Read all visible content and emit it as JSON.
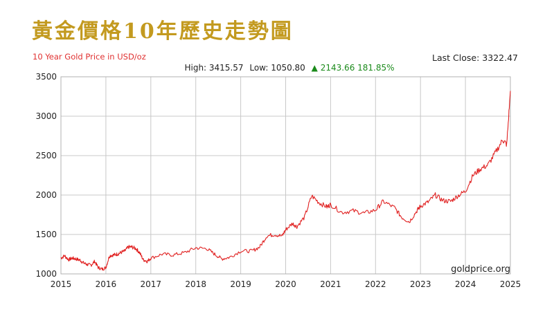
{
  "page_title": "黃金價格10年歷史走勢圖",
  "chart_data": {
    "type": "line",
    "title": "10 Year Gold Price in USD/oz",
    "last_close_label": "Last Close: 3322.47",
    "stats": {
      "high_label": "High: 3415.57",
      "low_label": "Low: 1050.80",
      "change_label": "▲ 2143.66 181.85%"
    },
    "watermark": "goldprice.org",
    "xlabel": "",
    "ylabel": "",
    "xlim": [
      2015,
      2025
    ],
    "ylim": [
      1000,
      3500
    ],
    "grid": true,
    "x_ticks": [
      "2015",
      "2016",
      "2017",
      "2018",
      "2019",
      "2020",
      "2021",
      "2022",
      "2023",
      "2024",
      "2025"
    ],
    "y_ticks": [
      "1000",
      "1500",
      "2000",
      "2500",
      "3000",
      "3500"
    ],
    "series": [
      {
        "color": "#e02020",
        "x": [
          2015.0,
          2015.08,
          2015.17,
          2015.25,
          2015.33,
          2015.42,
          2015.5,
          2015.58,
          2015.67,
          2015.75,
          2015.83,
          2015.92,
          2016.0,
          2016.08,
          2016.17,
          2016.25,
          2016.33,
          2016.42,
          2016.5,
          2016.58,
          2016.67,
          2016.75,
          2016.83,
          2016.92,
          2017.0,
          2017.25,
          2017.5,
          2017.75,
          2018.0,
          2018.25,
          2018.42,
          2018.58,
          2018.75,
          2019.0,
          2019.25,
          2019.42,
          2019.58,
          2019.75,
          2019.92,
          2020.0,
          2020.15,
          2020.25,
          2020.42,
          2020.58,
          2020.75,
          2020.92,
          2021.0,
          2021.25,
          2021.5,
          2021.75,
          2022.0,
          2022.17,
          2022.42,
          2022.58,
          2022.75,
          2022.92,
          2023.0,
          2023.17,
          2023.33,
          2023.5,
          2023.67,
          2023.83,
          2024.0,
          2024.17,
          2024.33,
          2024.5,
          2024.67,
          2024.83,
          2024.92,
          2025.0
        ],
        "y": [
          1200,
          1230,
          1180,
          1200,
          1190,
          1175,
          1140,
          1120,
          1110,
          1160,
          1080,
          1060,
          1080,
          1230,
          1240,
          1250,
          1270,
          1290,
          1340,
          1340,
          1320,
          1270,
          1180,
          1160,
          1200,
          1250,
          1240,
          1270,
          1330,
          1320,
          1250,
          1190,
          1210,
          1290,
          1290,
          1340,
          1480,
          1500,
          1480,
          1560,
          1640,
          1600,
          1720,
          1990,
          1900,
          1850,
          1880,
          1780,
          1800,
          1770,
          1810,
          1920,
          1840,
          1720,
          1660,
          1800,
          1860,
          1910,
          2000,
          1930,
          1920,
          1990,
          2050,
          2250,
          2330,
          2380,
          2540,
          2700,
          2640,
          3320
        ]
      }
    ]
  }
}
